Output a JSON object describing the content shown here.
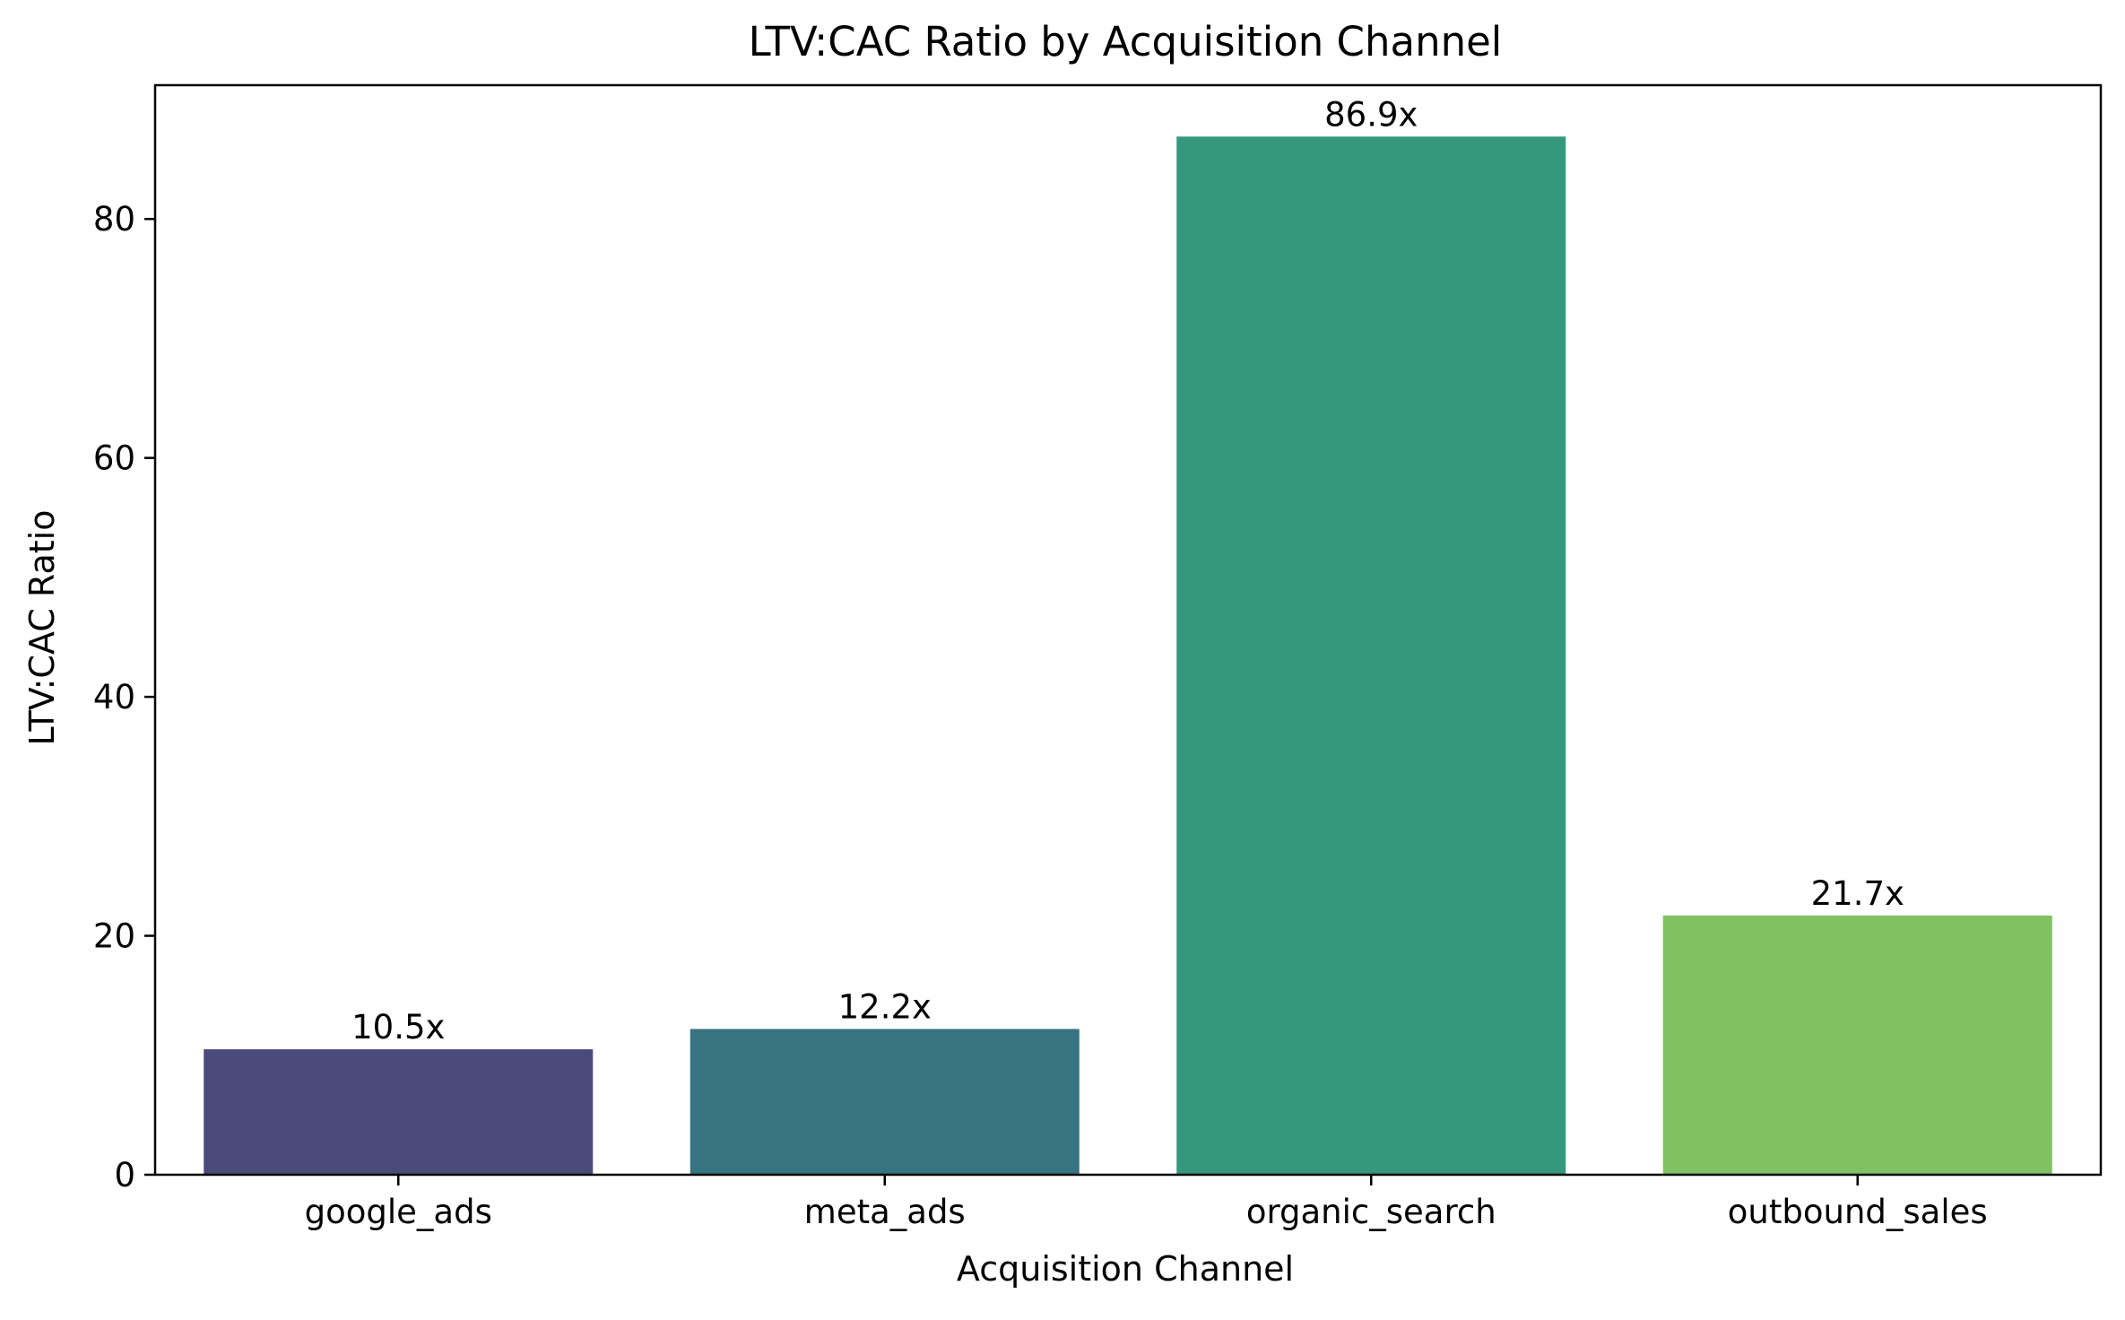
{
  "chart_data": {
    "type": "bar",
    "title": "LTV:CAC Ratio by Acquisition Channel",
    "xlabel": "Acquisition Channel",
    "ylabel": "LTV:CAC Ratio",
    "categories": [
      "google_ads",
      "meta_ads",
      "organic_search",
      "outbound_sales"
    ],
    "values": [
      10.5,
      12.2,
      86.9,
      21.7
    ],
    "value_labels": [
      "10.5x",
      "12.2x",
      "86.9x",
      "21.7x"
    ],
    "colors": [
      "#4a4a7b",
      "#377380",
      "#35987c",
      "#80c261"
    ],
    "ylim": [
      0,
      91.2
    ],
    "yticks": [
      0,
      20,
      40,
      60,
      80
    ],
    "grid": false,
    "legend": "none"
  }
}
